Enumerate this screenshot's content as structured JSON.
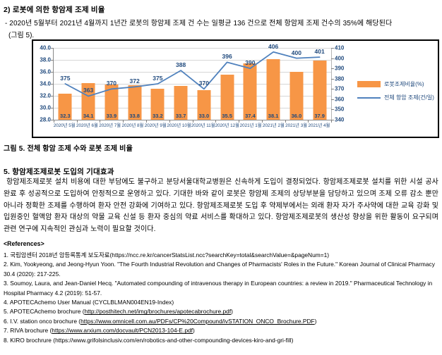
{
  "page": {
    "heading": "2) 로봇에 의한 항암제 조제 비율",
    "bullet_line1": "- 2020년 5월부터 2021년 4월까지 1년간 로봇의 항암제 조제 건 수는 일평균 136 건으로 전체 항암제 조제 건수의 35%에 해당된다",
    "bullet_line2": "(그림 5).",
    "figure_caption": "그림 5. 전체 항암 조제 수와 로봇 조제 비율",
    "section_heading": "5. 항암제조제로봇 도입의 기대효과",
    "section_body": "항암제조제로봇 설치 비용에 대한 부담에도 불구하고 분당서울대학교병원은 신속하게 도입이 결정되었다. 항암제조제로봇 설치를 위한 시설 공사 완료 후 성공적으로 도입하여 안정적으로 운영하고 있다. 기대한 바와 같이 로봇은 항암제 조제의 상당부분을 담당하고 있으며 조제 오류 감소 뿐만 아니라 정확한 조제를 수행하여 환자 안전 강화에 기여하고 있다. 항암제조제로봇 도입 후 약제부에서는 외래 환자 자가 주사약에 대한 교육 강화 및 입원중인 혈액암 환자 대상의 약물 교육 신설 등 환자 중심의 약료 서비스를 확대하고 있다. 항암제조제로봇의 생산성 향상을 위한 활동이 요구되며 관련 연구에 지속적인 관심과 노력이 필요할 것이다.",
    "references_heading": "<References>",
    "references": [
      {
        "before": "1. 국립암센터 2018년 암등록통계 보도자료(https://ncc.re.kr/cancerStatsList.ncc?searchKey=total&searchValue=&pageNum=1)",
        "link": "",
        "after": ""
      },
      {
        "before": "2. Kim, Yookyeong, and Jeong-Hyun Yoon. \"The Fourth Industrial Revolution and Changes of Pharmacists' Roles in the Future.\" Korean Journal of Clinical Pharmacy 30.4 (2020): 217-225.",
        "link": "",
        "after": ""
      },
      {
        "before": "3. Soumoy, Laura, and Jean-Daniel Hecq. \"Automated compounding of intravenous therapy in European countries: a review in 2019.\" Pharmaceutical Technology in Hospital Pharmacy 4.2 (2019): 51-57.",
        "link": "",
        "after": ""
      },
      {
        "before": "4. APOTECAchemo User Manual (CYCLBLMAN004EN19-Index)",
        "link": "",
        "after": ""
      },
      {
        "before": "5. APOTECAchemo brochure (",
        "link": "http://posthitech.net/img/brochures/apotecabrochure.pdf",
        "after": ")"
      },
      {
        "before": "6. I.V. station onco brochure (",
        "link": "https://www.omnicell.com.au/PDFs/CP%20Compound/ivSTATION_ONCO_Brochure.PDF",
        "after": ")"
      },
      {
        "before": "7. RIVA brochure (",
        "link": "https://www.arxium.com/docvault/PCN2013-104-E.pdf",
        "after": ")"
      },
      {
        "before": "8. KIRO brochrure (https://www.grifolsinclusiv.com/en/robotics-and-other-compounding-devices-kiro-and-gri-fill)",
        "link": "",
        "after": ""
      }
    ]
  },
  "chart_data": {
    "type": "bar+line combo",
    "categories": [
      "2020년 5월",
      "2020년 6월",
      "2020년 7월",
      "2020년 8월",
      "2020년 9월",
      "2020년 10월",
      "2020년 11월",
      "2020년 12월",
      "2021년 1월",
      "2021년 2월",
      "2021년 3월",
      "2021년 4월"
    ],
    "series": [
      {
        "name": "로봇조제비율(%)",
        "type": "bar",
        "axis": "left",
        "color": "#F79646",
        "values": [
          32.3,
          34.1,
          33.9,
          33.8,
          33.2,
          33.7,
          33.0,
          35.5,
          37.4,
          38.1,
          36.0,
          37.9
        ]
      },
      {
        "name": "전체 항암 조제(건/일)",
        "type": "line",
        "axis": "right",
        "color": "#4F81BD",
        "values": [
          375,
          363,
          370,
          372,
          375,
          388,
          370,
          396,
          390,
          406,
          400,
          401
        ]
      }
    ],
    "left_axis": {
      "min": 28.0,
      "max": 40.0,
      "step": 2.0,
      "ticks": [
        "40.0",
        "38.0",
        "36.0",
        "34.0",
        "32.0",
        "30.0",
        "28.0"
      ]
    },
    "right_axis": {
      "min": 340,
      "max": 410,
      "step": 10,
      "ticks": [
        "410",
        "400",
        "390",
        "380",
        "370",
        "360",
        "350",
        "340"
      ]
    },
    "label_color": "#1F497D",
    "grid": true,
    "legend_position": "right"
  }
}
